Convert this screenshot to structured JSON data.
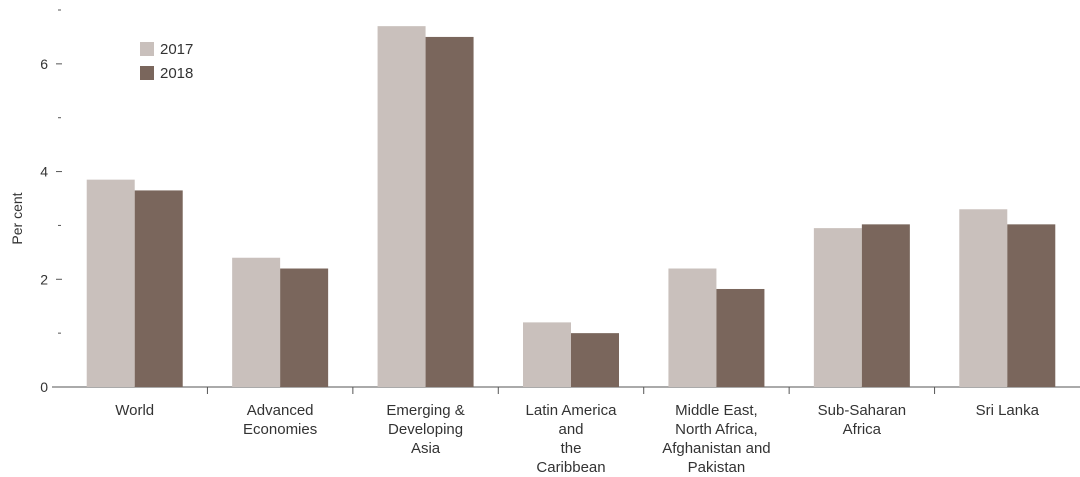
{
  "chart_data": {
    "type": "bar",
    "title": "",
    "xlabel": "",
    "ylabel": "Per cent",
    "ylim": [
      0,
      7
    ],
    "y_major_ticks": [
      0,
      2,
      4,
      6
    ],
    "y_minor_ticks": [
      1,
      3,
      5,
      7
    ],
    "grid": false,
    "legend_position": "top-left",
    "categories": [
      [
        "World"
      ],
      [
        "Advanced",
        "Economies"
      ],
      [
        "Emerging &",
        "Developing",
        "Asia"
      ],
      [
        "Latin America",
        "and",
        "the",
        "Caribbean"
      ],
      [
        "Middle East,",
        "North Africa,",
        "Afghanistan and",
        "Pakistan"
      ],
      [
        "Sub-Saharan",
        "Africa"
      ],
      [
        "Sri Lanka"
      ]
    ],
    "series": [
      {
        "name": "2017",
        "color": "#c9c0bc",
        "values": [
          3.85,
          2.4,
          6.7,
          1.2,
          2.2,
          2.95,
          3.3
        ]
      },
      {
        "name": "2018",
        "color": "#7a665c",
        "values": [
          3.65,
          2.2,
          6.5,
          1.0,
          1.82,
          3.02,
          3.02
        ]
      }
    ]
  }
}
